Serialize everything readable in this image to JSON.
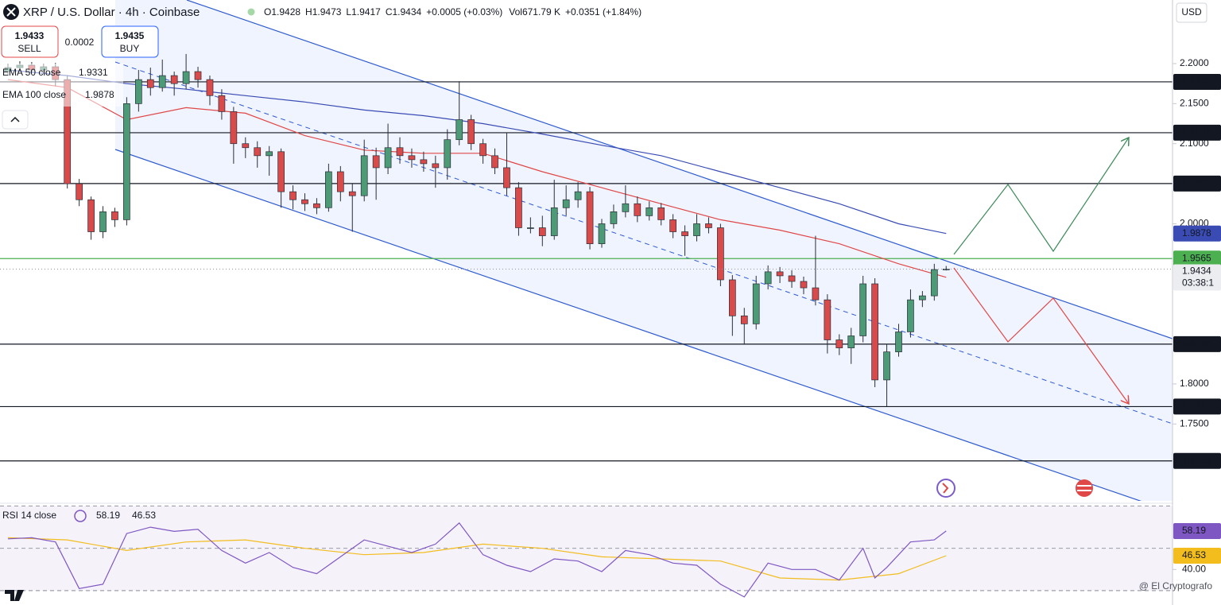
{
  "chart_data": {
    "type": "candlestick",
    "title": "XRP / U.S. Dollar · 4h · Coinbase",
    "header": {
      "o": "O1.9428",
      "h": "H1.9473",
      "l": "L1.9417",
      "c": "C1.9434",
      "change": "+0.0005 (+0.03%)",
      "vol": "Vol671.79 K",
      "vol_change": "+0.0351 (+1.84%)"
    },
    "sell": {
      "price": "1.9433",
      "label": "SELL"
    },
    "spread": "0.0002",
    "buy": {
      "price": "1.9435",
      "label": "BUY"
    },
    "currency": "USD",
    "countdown": "03:38:1",
    "watermark": "@ El Cryptografo",
    "ylim": [
      1.654,
      2.2794
    ],
    "yticks": [
      {
        "value": 2.2,
        "label": "2.2000"
      },
      {
        "value": 2.15,
        "label": "2.1500"
      },
      {
        "value": 2.1,
        "label": "2.1000"
      },
      {
        "value": 2.0,
        "label": "2.0000"
      },
      {
        "value": 1.8,
        "label": "1.8000"
      },
      {
        "value": 1.75,
        "label": "1.7500"
      }
    ],
    "up_color": "#4d9a76",
    "down_color": "#d94a4a",
    "series": [
      {
        "name": "XRP",
        "ohlc": [
          [
            2.19,
            2.2,
            2.186,
            2.195
          ],
          [
            2.195,
            2.203,
            2.19,
            2.198
          ],
          [
            2.198,
            2.202,
            2.188,
            2.192
          ],
          [
            2.192,
            2.2,
            2.187,
            2.196
          ],
          [
            2.196,
            2.201,
            2.172,
            2.18
          ],
          [
            2.18,
            2.185,
            2.044,
            2.05
          ],
          [
            2.05,
            2.056,
            2.022,
            2.03
          ],
          [
            2.03,
            2.034,
            1.98,
            1.99
          ],
          [
            1.99,
            2.022,
            1.982,
            2.015
          ],
          [
            2.015,
            2.02,
            1.996,
            2.005
          ],
          [
            2.005,
            2.158,
            1.998,
            2.15
          ],
          [
            2.15,
            2.192,
            2.14,
            2.18
          ],
          [
            2.18,
            2.195,
            2.16,
            2.17
          ],
          [
            2.17,
            2.205,
            2.165,
            2.185
          ],
          [
            2.185,
            2.19,
            2.16,
            2.175
          ],
          [
            2.175,
            2.212,
            2.168,
            2.19
          ],
          [
            2.19,
            2.196,
            2.17,
            2.18
          ],
          [
            2.18,
            2.185,
            2.148,
            2.16
          ],
          [
            2.16,
            2.168,
            2.13,
            2.14
          ],
          [
            2.14,
            2.146,
            2.075,
            2.1
          ],
          [
            2.1,
            2.108,
            2.082,
            2.095
          ],
          [
            2.095,
            2.103,
            2.07,
            2.085
          ],
          [
            2.085,
            2.097,
            2.06,
            2.09
          ],
          [
            2.09,
            2.094,
            2.02,
            2.04
          ],
          [
            2.04,
            2.048,
            2.018,
            2.03
          ],
          [
            2.03,
            2.038,
            2.016,
            2.025
          ],
          [
            2.025,
            2.032,
            2.012,
            2.02
          ],
          [
            2.02,
            2.075,
            2.015,
            2.065
          ],
          [
            2.065,
            2.072,
            2.028,
            2.04
          ],
          [
            2.04,
            2.05,
            1.99,
            2.035
          ],
          [
            2.035,
            2.105,
            2.028,
            2.085
          ],
          [
            2.085,
            2.095,
            2.03,
            2.07
          ],
          [
            2.07,
            2.125,
            2.062,
            2.095
          ],
          [
            2.095,
            2.108,
            2.075,
            2.085
          ],
          [
            2.085,
            2.094,
            2.07,
            2.08
          ],
          [
            2.08,
            2.09,
            2.065,
            2.075
          ],
          [
            2.075,
            2.085,
            2.045,
            2.07
          ],
          [
            2.07,
            2.118,
            2.055,
            2.105
          ],
          [
            2.105,
            2.178,
            2.098,
            2.13
          ],
          [
            2.13,
            2.136,
            2.092,
            2.1
          ],
          [
            2.1,
            2.106,
            2.075,
            2.085
          ],
          [
            2.085,
            2.094,
            2.062,
            2.07
          ],
          [
            2.07,
            2.114,
            2.035,
            2.045
          ],
          [
            2.045,
            2.052,
            1.985,
            1.995
          ],
          [
            1.995,
            2.008,
            1.988,
            1.995
          ],
          [
            1.995,
            2.01,
            1.972,
            1.985
          ],
          [
            1.985,
            2.055,
            1.98,
            2.02
          ],
          [
            2.02,
            2.048,
            2.01,
            2.03
          ],
          [
            2.03,
            2.052,
            2.02,
            2.04
          ],
          [
            2.04,
            2.046,
            1.968,
            1.975
          ],
          [
            1.975,
            2.006,
            1.97,
            2.0
          ],
          [
            2.0,
            2.024,
            1.994,
            2.015
          ],
          [
            2.015,
            2.048,
            2.008,
            2.025
          ],
          [
            2.025,
            2.034,
            2.002,
            2.01
          ],
          [
            2.01,
            2.028,
            2.004,
            2.02
          ],
          [
            2.02,
            2.026,
            1.998,
            2.005
          ],
          [
            2.005,
            2.012,
            1.982,
            1.99
          ],
          [
            1.99,
            1.998,
            1.96,
            1.985
          ],
          [
            1.985,
            2.012,
            1.978,
            2.0
          ],
          [
            2.0,
            2.008,
            1.988,
            1.995
          ],
          [
            1.995,
            2.0,
            1.922,
            1.93
          ],
          [
            1.93,
            1.936,
            1.86,
            1.885
          ],
          [
            1.885,
            1.895,
            1.85,
            1.875
          ],
          [
            1.875,
            1.935,
            1.868,
            1.925
          ],
          [
            1.925,
            1.948,
            1.918,
            1.94
          ],
          [
            1.94,
            1.946,
            1.926,
            1.935
          ],
          [
            1.935,
            1.942,
            1.92,
            1.928
          ],
          [
            1.928,
            1.934,
            1.912,
            1.92
          ],
          [
            1.92,
            1.985,
            1.898,
            1.905
          ],
          [
            1.905,
            1.912,
            1.838,
            1.855
          ],
          [
            1.855,
            1.862,
            1.836,
            1.845
          ],
          [
            1.845,
            1.87,
            1.825,
            1.86
          ],
          [
            1.86,
            1.935,
            1.852,
            1.925
          ],
          [
            1.925,
            1.932,
            1.796,
            1.805
          ],
          [
            1.805,
            1.85,
            1.772,
            1.84
          ],
          [
            1.84,
            1.875,
            1.834,
            1.865
          ],
          [
            1.865,
            1.918,
            1.858,
            1.905
          ],
          [
            1.905,
            1.916,
            1.896,
            1.91
          ],
          [
            1.91,
            1.95,
            1.904,
            1.9428
          ],
          [
            1.9428,
            1.9473,
            1.9417,
            1.9434
          ]
        ]
      }
    ],
    "indicators": [
      {
        "name": "EMA 50 close",
        "color": "#e04848",
        "x": [
          0,
          5,
          10,
          15,
          20,
          25,
          30,
          35,
          40,
          45,
          50,
          55,
          60,
          65,
          70,
          75,
          79
        ],
        "values": [
          2.18,
          2.17,
          2.13,
          2.145,
          2.138,
          2.11,
          2.092,
          2.088,
          2.088,
          2.065,
          2.045,
          2.025,
          2.005,
          1.992,
          1.975,
          1.95,
          1.9331
        ]
      },
      {
        "name": "EMA 100 close",
        "color": "#3a4cb4",
        "x": [
          0,
          5,
          10,
          15,
          20,
          25,
          30,
          35,
          40,
          45,
          50,
          55,
          60,
          65,
          70,
          75,
          79
        ],
        "values": [
          2.192,
          2.185,
          2.175,
          2.168,
          2.16,
          2.152,
          2.142,
          2.135,
          2.125,
          2.112,
          2.098,
          2.085,
          2.065,
          2.045,
          2.025,
          2.0,
          1.9878
        ]
      }
    ],
    "levels": [
      {
        "value": 2.1772,
        "color": "#131722"
      },
      {
        "value": 2.1137,
        "color": "#131722"
      },
      {
        "value": 2.0502,
        "color": "#131722"
      },
      {
        "value": 1.8497,
        "color": "#131722"
      },
      {
        "value": 1.7717,
        "color": "#131722"
      },
      {
        "value": 1.7039,
        "color": "#131722"
      },
      {
        "value": 1.9565,
        "color": "#4caf50"
      }
    ],
    "rsi": {
      "name": "RSI 14 close",
      "ylim": [
        23.2,
        70.2
      ],
      "yticks": [
        {
          "value": 40,
          "label": "40.00"
        }
      ],
      "levels": [
        70,
        50,
        30
      ],
      "series": [
        {
          "name": "RSI",
          "color": "#7e57c2",
          "x": [
            0,
            2,
            4,
            6,
            8,
            10,
            12,
            14,
            16,
            18,
            20,
            22,
            24,
            26,
            28,
            30,
            32,
            34,
            36,
            38,
            40,
            42,
            44,
            46,
            48,
            50,
            52,
            54,
            56,
            58,
            60,
            62,
            64,
            66,
            68,
            70,
            72,
            73,
            74,
            76,
            78,
            79
          ],
          "values": [
            54.5,
            55,
            53,
            31,
            33,
            57,
            60,
            58,
            59,
            49,
            43,
            48,
            41,
            38,
            46,
            54,
            51,
            48,
            52,
            62,
            47,
            42,
            39,
            45,
            44,
            39,
            49,
            47,
            43,
            42,
            33,
            27,
            43,
            40,
            40,
            35,
            50,
            36,
            41,
            53,
            54,
            58.19
          ]
        },
        {
          "name": "RSI-based MA",
          "color": "#f2bd1d",
          "x": [
            0,
            5,
            10,
            15,
            20,
            25,
            30,
            35,
            40,
            45,
            50,
            55,
            60,
            65,
            70,
            75,
            79
          ],
          "values": [
            55,
            54,
            49,
            53,
            54,
            50,
            47,
            48,
            52,
            50,
            46,
            45,
            44,
            36,
            35,
            38,
            46.53
          ]
        }
      ]
    }
  }
}
